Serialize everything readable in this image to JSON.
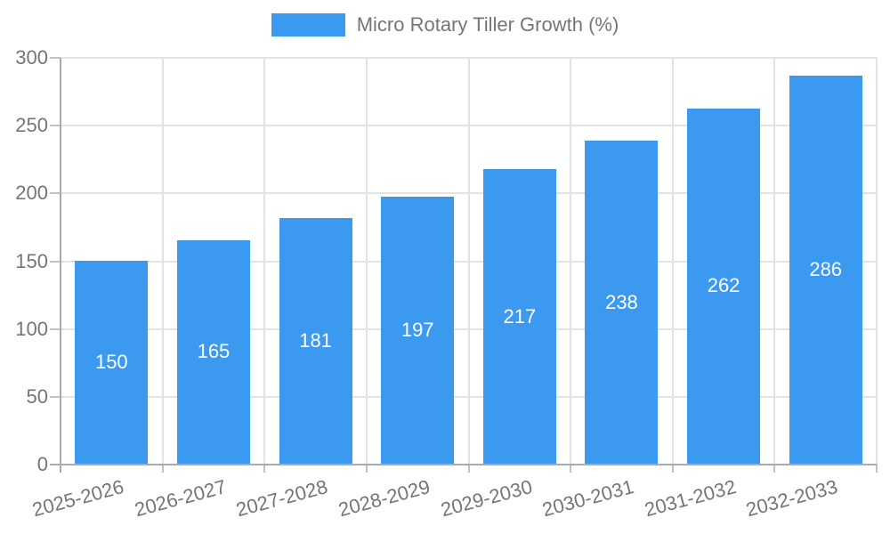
{
  "legend": {
    "label": "Micro Rotary Tiller Growth (%)"
  },
  "chart_data": {
    "type": "bar",
    "title": "Micro Rotary Tiller Growth (%)",
    "categories": [
      "2025-2026",
      "2026-2027",
      "2027-2028",
      "2028-2029",
      "2029-2030",
      "2030-2031",
      "2031-2032",
      "2032-2033"
    ],
    "values": [
      150,
      165,
      181,
      197,
      217,
      238,
      262,
      286
    ],
    "value_labels": [
      "150",
      "165",
      "181",
      "197",
      "217",
      "238",
      "262",
      "286"
    ],
    "xlabel": "",
    "ylabel": "",
    "ylim": [
      0,
      300
    ],
    "yticks": [
      0,
      50,
      100,
      150,
      200,
      250,
      300
    ],
    "grid": true,
    "legend_position": "top-center",
    "x_label_rotation_deg": -15,
    "colors": {
      "bar": "#3B99F0",
      "bar_value_label": "#FFFFFF",
      "axis_line": "#ABABAB",
      "grid_line": "#E3E3E3",
      "tick_mark": "#C2C2C2",
      "tick_label": "#757575",
      "background": "#FFFFFF"
    }
  }
}
